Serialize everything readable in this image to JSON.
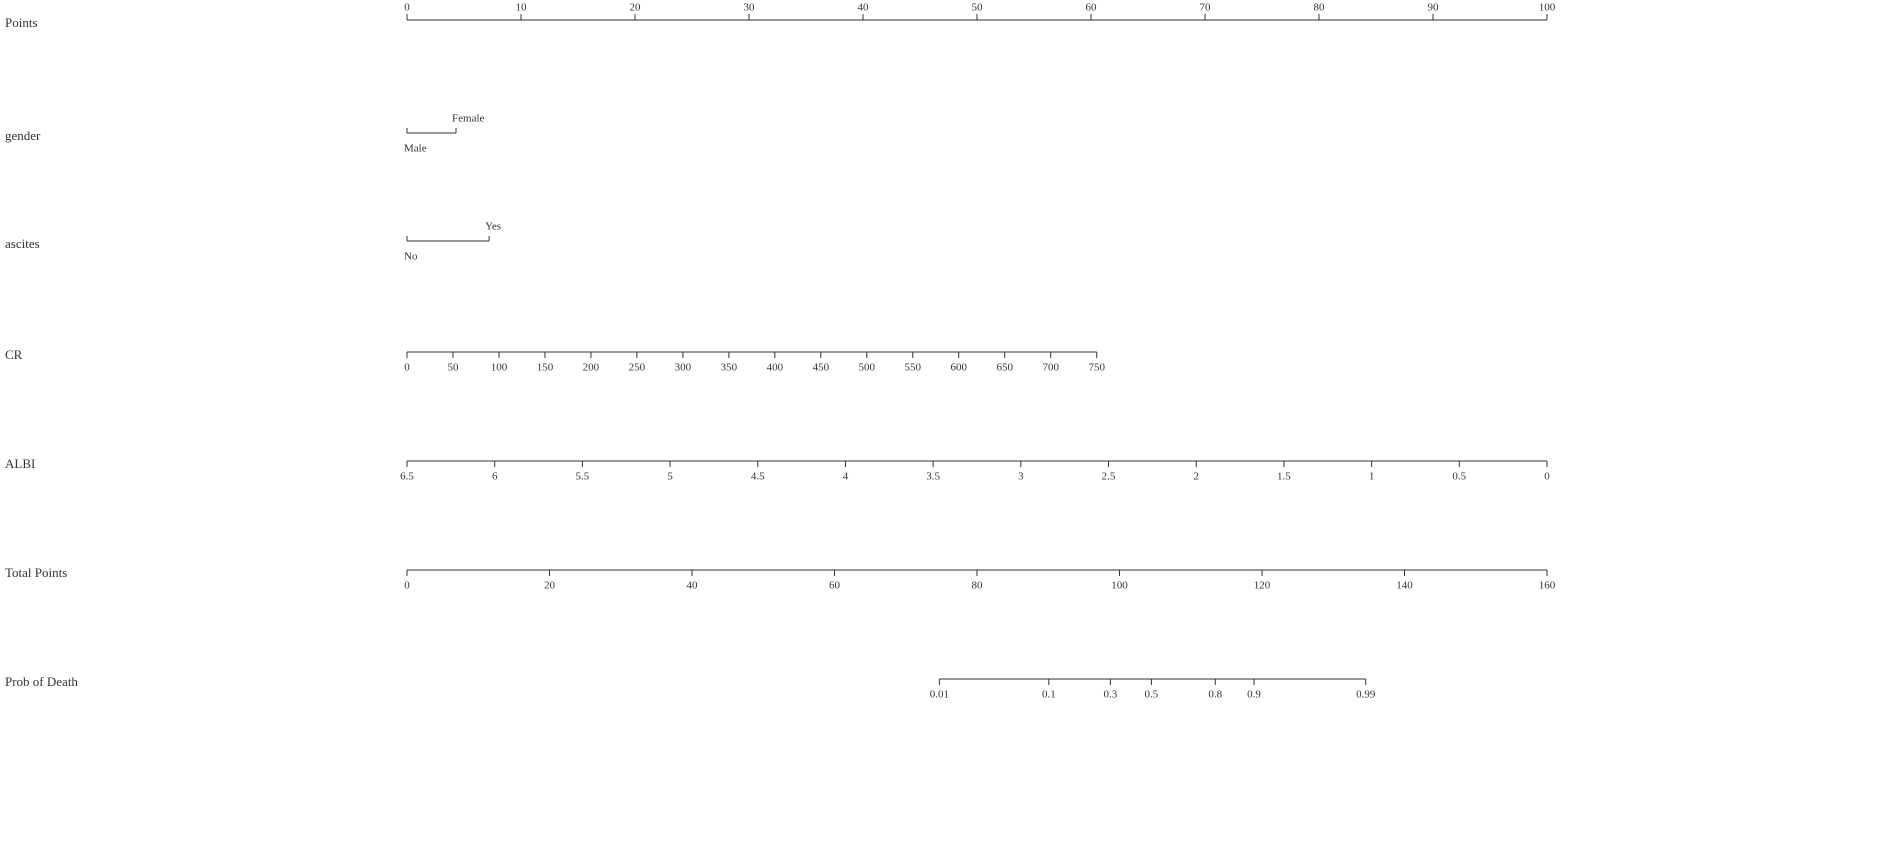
{
  "chart_data": {
    "type": "nomogram",
    "rows": [
      {
        "label": "Points",
        "xlim": [
          0,
          100
        ],
        "points": [
          0,
          100
        ],
        "ticks": [
          0,
          10,
          20,
          30,
          40,
          50,
          60,
          70,
          80,
          90,
          100
        ],
        "tick_side": "top"
      },
      {
        "label": "gender",
        "levels": [
          "Male",
          "Female"
        ],
        "level_points": [
          0,
          4.3
        ]
      },
      {
        "label": "ascites",
        "levels": [
          "No",
          "Yes"
        ],
        "level_points": [
          0,
          7.2
        ]
      },
      {
        "label": "CR",
        "xlim": [
          0,
          750
        ],
        "points": [
          0,
          60.5
        ],
        "ticks": [
          0,
          50,
          100,
          150,
          200,
          250,
          300,
          350,
          400,
          450,
          500,
          550,
          600,
          650,
          700,
          750
        ],
        "tick_side": "bottom"
      },
      {
        "label": "ALBI",
        "xlim": [
          6.5,
          0
        ],
        "points": [
          0,
          100
        ],
        "ticks": [
          6.5,
          6,
          5.5,
          5,
          4.5,
          4,
          3.5,
          3,
          2.5,
          2,
          1.5,
          1,
          0.5,
          0
        ],
        "tick_side": "bottom"
      },
      {
        "label": "Total Points",
        "xlim": [
          0,
          160
        ],
        "points": [
          0,
          100
        ],
        "ticks": [
          0,
          20,
          40,
          60,
          80,
          100,
          120,
          140,
          160
        ],
        "tick_side": "bottom"
      },
      {
        "label": "Prob of Death",
        "ticks": [
          0.01,
          0.1,
          0.3,
          0.5,
          0.8,
          0.9,
          0.99
        ],
        "tick_points": [
          46.7,
          56.3,
          61.7,
          65.3,
          70.9,
          74.3,
          84.1
        ],
        "tick_side": "bottom"
      }
    ]
  }
}
